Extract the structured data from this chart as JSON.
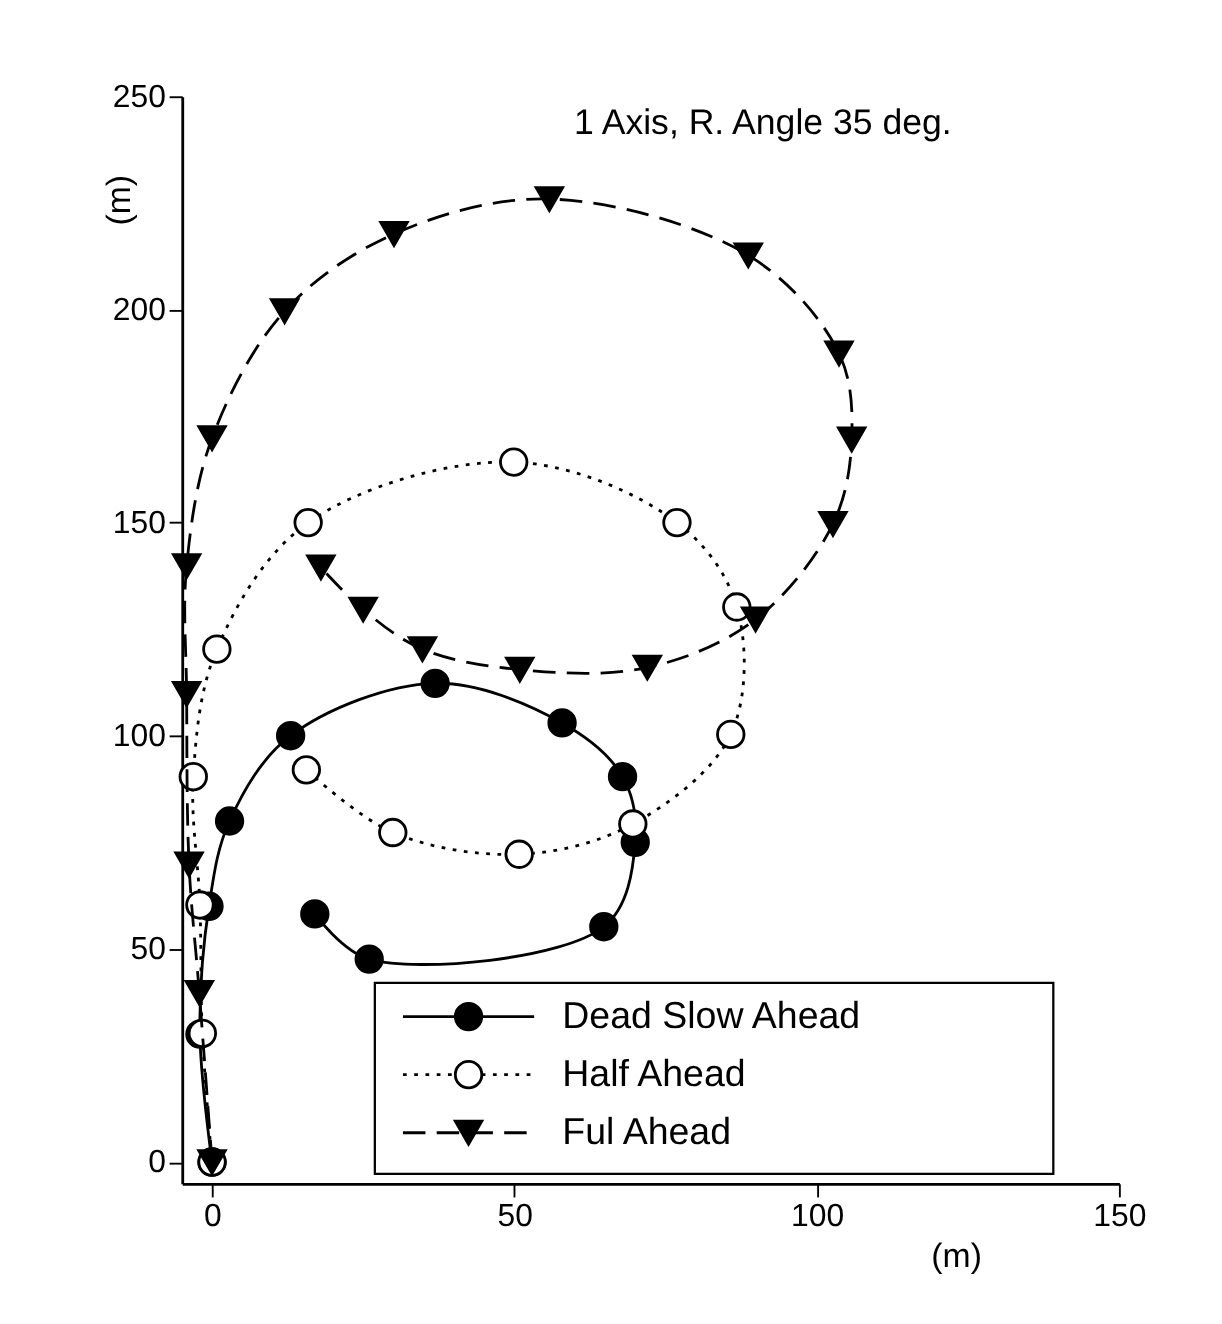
{
  "chart_data": {
    "type": "line",
    "xlim": [
      -5,
      150
    ],
    "ylim": [
      -5,
      250
    ],
    "xticks": [
      0,
      50,
      100,
      150
    ],
    "yticks": [
      0,
      50,
      100,
      150,
      200,
      250
    ],
    "xlabel": "(m)",
    "ylabel": "(m)",
    "grid": false,
    "legend": "bottom right",
    "annotations": [
      "1 Axis, R. Angle 35 deg."
    ],
    "series": [
      {
        "name": "Dead Slow Ahead",
        "color": "#000000",
        "marker": "circle",
        "line_style": "solid",
        "x": [
          0,
          -2,
          -0.5,
          2.9,
          13,
          36.9,
          57.9,
          67.9,
          70,
          64.8,
          26,
          17
        ],
        "values": [
          0,
          30,
          60,
          80,
          100,
          112.3,
          103,
          90.4,
          75,
          55.2,
          47.6,
          58.2
        ]
      },
      {
        "name": "Half Ahead",
        "color": "#000000",
        "marker": "circle-open",
        "line_style": "dotted",
        "x": [
          0,
          -1.6,
          -2,
          -3.1,
          0.8,
          15.9,
          49.9,
          76.9,
          86.8,
          85.8,
          69.6,
          50.8,
          29.9,
          15.6
        ],
        "values": [
          0,
          30.2,
          60.3,
          90.4,
          120.3,
          150,
          164.2,
          150,
          130.2,
          100.3,
          79.3,
          72.2,
          77.3,
          92
        ]
      },
      {
        "name": "Ful Ahead",
        "color": "#000000",
        "marker": "triangle",
        "line_style": "dashed",
        "x": [
          0,
          -2.1,
          -3.8,
          -4.2,
          -4.2,
          0,
          12,
          30.1,
          55.8,
          88.7,
          103.7,
          105.8,
          102.7,
          89.9,
          72,
          50.9,
          34.8,
          25,
          18
        ],
        "values": [
          0,
          39.7,
          69.8,
          109.8,
          139.8,
          169.8,
          199.6,
          217.7,
          225.9,
          212.7,
          189.7,
          169.5,
          149.7,
          127.3,
          116,
          115.5,
          120.3,
          129.6,
          139.5
        ]
      }
    ]
  }
}
